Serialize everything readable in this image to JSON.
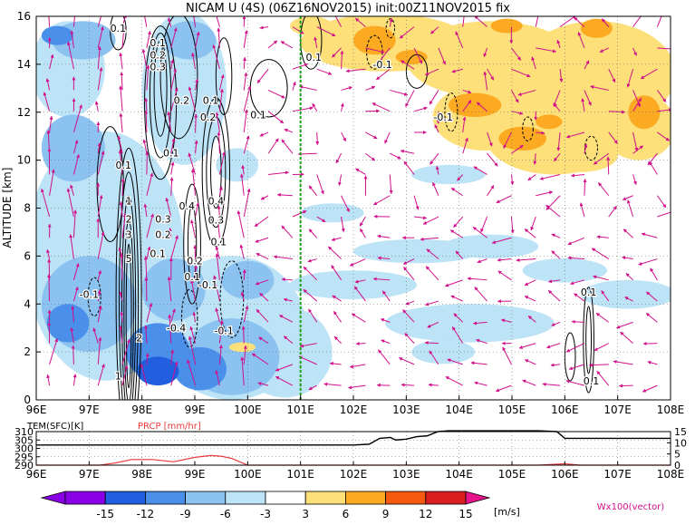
{
  "header": {
    "title": "NICAM U (4S)  (06Z16NOV2015) init:00Z11NOV2015  fix"
  },
  "colors": {
    "neg_15": "#8a00e6",
    "neg_12": "#1f5fe0",
    "neg_9": "#4a8fea",
    "neg_6": "#8cc2f0",
    "neg_3": "#bde3f7",
    "pos_3": "#fde07a",
    "pos_6": "#fbaa22",
    "pos_9": "#f55a10",
    "pos_12": "#d81e1e",
    "pos_15": "#a80000",
    "above_15": "#e6148a",
    "vector": "#d10f8a",
    "contour": "#000000",
    "marker_line": "#1aa11a",
    "prcp": "#e83a3a",
    "grid": "#666666"
  },
  "chart_data": [
    {
      "type": "heatmap",
      "ylabel": "ALTITUDE [km]",
      "x_ticks": [
        "96E",
        "97E",
        "98E",
        "99E",
        "100E",
        "101E",
        "102E",
        "103E",
        "104E",
        "105E",
        "106E",
        "107E",
        "108E"
      ],
      "y_ticks": [
        "0",
        "2",
        "4",
        "6",
        "8",
        "10",
        "12",
        "14",
        "16"
      ],
      "xlim": [
        96,
        108
      ],
      "ylim": [
        0,
        16
      ],
      "marker_longitude": 101,
      "grid": true,
      "contour_labels": [
        {
          "text": "0.1",
          "x": 97.55,
          "y": 15.5
        },
        {
          "text": "0.1",
          "x": 98.3,
          "y": 14.9
        },
        {
          "text": "0.2",
          "x": 98.3,
          "y": 14.4
        },
        {
          "text": "0.3",
          "x": 98.3,
          "y": 13.9
        },
        {
          "text": "0.2",
          "x": 98.75,
          "y": 12.5
        },
        {
          "text": "0.1",
          "x": 99.3,
          "y": 12.5
        },
        {
          "text": "0.2",
          "x": 99.25,
          "y": 11.8
        },
        {
          "text": "0.1",
          "x": 98.55,
          "y": 10.3
        },
        {
          "text": "0.1",
          "x": 97.65,
          "y": 9.8
        },
        {
          "text": "0.4",
          "x": 98.85,
          "y": 8.1
        },
        {
          "text": "0.3",
          "x": 98.4,
          "y": 7.55
        },
        {
          "text": "0.2",
          "x": 98.4,
          "y": 6.9
        },
        {
          "text": "0.4",
          "x": 99.4,
          "y": 8.3
        },
        {
          "text": "0.3",
          "x": 99.4,
          "y": 7.5
        },
        {
          "text": "0.1",
          "x": 99.45,
          "y": 6.6
        },
        {
          "text": "1",
          "x": 97.75,
          "y": 8.3
        },
        {
          "text": "2",
          "x": 97.75,
          "y": 7.55
        },
        {
          "text": "3",
          "x": 97.75,
          "y": 6.9
        },
        {
          "text": "5",
          "x": 97.75,
          "y": 5.9
        },
        {
          "text": "0.2",
          "x": 99.0,
          "y": 5.8
        },
        {
          "text": "0.1",
          "x": 98.95,
          "y": 5.15
        },
        {
          "text": "0.1",
          "x": 98.3,
          "y": 6.1
        },
        {
          "text": "-0.1",
          "x": 99.25,
          "y": 4.8
        },
        {
          "text": "-0.1",
          "x": 97.0,
          "y": 4.4
        },
        {
          "text": "-0.4",
          "x": 98.65,
          "y": 3.0
        },
        {
          "text": "-0.1",
          "x": 99.55,
          "y": 2.9
        },
        {
          "text": "2",
          "x": 97.95,
          "y": 2.6
        },
        {
          "text": "1",
          "x": 97.55,
          "y": 1.0
        },
        {
          "text": "0.1",
          "x": 101.25,
          "y": 14.3
        },
        {
          "text": "-0.1",
          "x": 102.55,
          "y": 14.0
        },
        {
          "text": "0.1",
          "x": 100.2,
          "y": 11.9
        },
        {
          "text": "-0.1",
          "x": 103.7,
          "y": 11.8
        },
        {
          "text": "0.1",
          "x": 106.45,
          "y": 4.5
        },
        {
          "text": "0.1",
          "x": 106.5,
          "y": 0.8
        }
      ]
    },
    {
      "type": "line",
      "title_left": "TEM(SFC)[K]",
      "title_right": "PRCP [mm/hr]",
      "left_ticks": [
        "310",
        "305",
        "300",
        "295",
        "290"
      ],
      "right_ticks": [
        "15",
        "10",
        "5",
        "0"
      ],
      "x_ticks": [
        "96E",
        "97E",
        "98E",
        "99E",
        "100E",
        "101E",
        "102E",
        "103E",
        "104E",
        "105E",
        "106E",
        "107E",
        "108E"
      ],
      "series": [
        {
          "axis": "left",
          "x": [
            96.0,
            97.0,
            98.0,
            99.0,
            100.0,
            101.0,
            102.0,
            102.3,
            102.5,
            102.7,
            102.8,
            103.0,
            103.2,
            103.4,
            103.6,
            103.8,
            104.0,
            105.0,
            105.5,
            105.85,
            106.0,
            106.5,
            107.0,
            108.0
          ],
          "y": [
            302.0,
            302.0,
            302.0,
            302.0,
            302.0,
            302.0,
            302.0,
            302.5,
            306.0,
            306.5,
            305.0,
            305.5,
            307.0,
            307.5,
            310.0,
            310.5,
            310.5,
            310.5,
            310.5,
            310.0,
            306.0,
            306.0,
            306.0,
            306.0
          ]
        },
        {
          "axis": "right",
          "x": [
            96.0,
            97.2,
            97.5,
            97.8,
            98.2,
            98.6,
            99.0,
            99.3,
            99.5,
            99.7,
            99.9,
            100.0,
            101.0,
            105.5,
            106.0,
            106.3,
            106.7,
            108.0
          ],
          "y": [
            0.0,
            0.0,
            1.0,
            2.5,
            2.5,
            1.5,
            3.5,
            4.3,
            4.0,
            3.0,
            1.0,
            0.0,
            0.0,
            0.0,
            0.6,
            0.0,
            0.0,
            0.0
          ]
        }
      ]
    }
  ],
  "colorbar": {
    "labels": [
      "-15",
      "-12",
      "-9",
      "-6",
      "-3",
      "3",
      "6",
      "9",
      "12",
      "15"
    ],
    "unit": "[m/s]"
  },
  "vector_label": "Wx100(vector)"
}
